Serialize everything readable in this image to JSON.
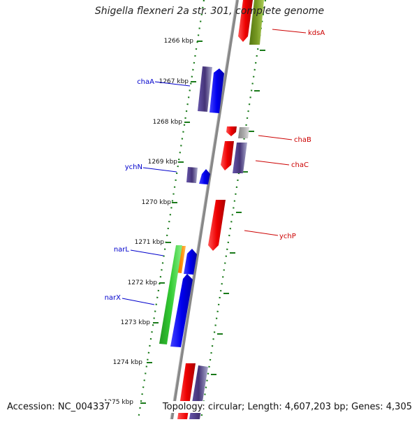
{
  "title": "Shigella flexneri 2a str. 301, complete genome",
  "accession": "Accession: NC_004337",
  "topology": "Topology: circular; Length: 4,607,203 bp; Genes: 4,305",
  "colors": {
    "backbone": "#777777",
    "tick": "#1a7a1a",
    "forward_label": "#0000cc",
    "reverse_label": "#cc0000",
    "red": "#ee0000",
    "blue": "#0000ee",
    "navy": "#443377",
    "green": "#22bb22",
    "orange": "#ff8800",
    "olive": "#779922",
    "gray": "#aaaaaa"
  },
  "ruler": [
    {
      "label": "1266 kbp"
    },
    {
      "label": "1267 kbp"
    },
    {
      "label": "1268 kbp"
    },
    {
      "label": "1269 kbp"
    },
    {
      "label": "1270 kbp"
    },
    {
      "label": "1271 kbp"
    },
    {
      "label": "1272 kbp"
    },
    {
      "label": "1273 kbp"
    },
    {
      "label": "1274 kbp"
    },
    {
      "label": "1275 kbp"
    }
  ],
  "gene_labels": [
    {
      "name": "kdsA",
      "strand": "reverse"
    },
    {
      "name": "chaA",
      "strand": "forward"
    },
    {
      "name": "chaB",
      "strand": "reverse"
    },
    {
      "name": "chaC",
      "strand": "reverse"
    },
    {
      "name": "ychN",
      "strand": "forward"
    },
    {
      "name": "ychP",
      "strand": "reverse"
    },
    {
      "name": "narL",
      "strand": "forward"
    },
    {
      "name": "narX",
      "strand": "forward"
    }
  ]
}
